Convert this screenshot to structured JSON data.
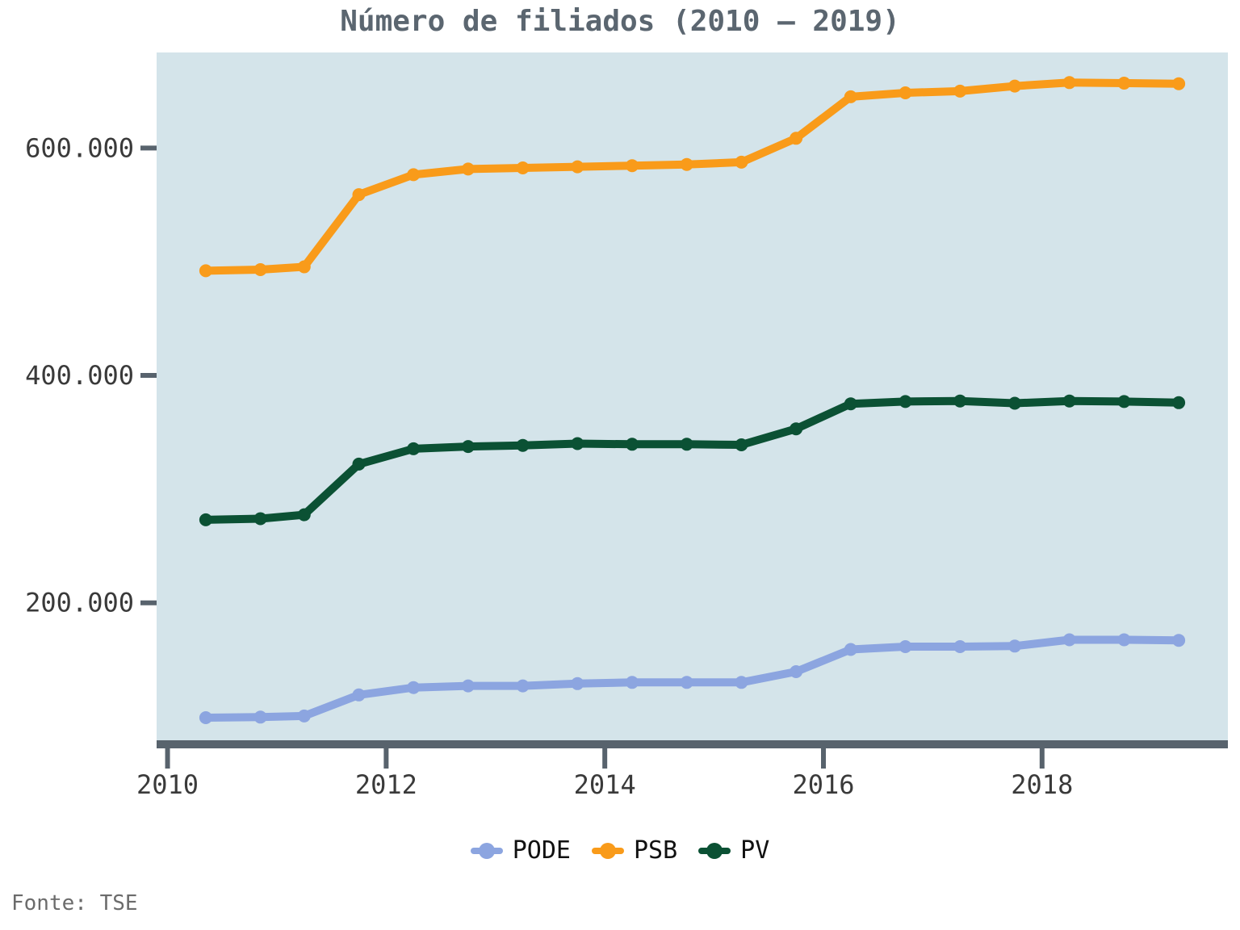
{
  "chart_data": {
    "type": "line",
    "title": "Número de filiados (2010 – 2019)",
    "xlabel": "",
    "ylabel": "",
    "x": [
      2010.35,
      2010.85,
      2011.25,
      2011.75,
      2012.25,
      2012.75,
      2013.25,
      2013.75,
      2014.25,
      2014.75,
      2015.25,
      2015.75,
      2016.25,
      2016.75,
      2017.25,
      2017.75,
      2018.25,
      2018.75,
      2019.25
    ],
    "xlim": [
      2009.9,
      2019.7
    ],
    "x_ticks": [
      2010,
      2012,
      2014,
      2016,
      2018
    ],
    "x_tick_labels": [
      "2010",
      "2012",
      "2014",
      "2016",
      "2018"
    ],
    "ylim": [
      77000,
      684000
    ],
    "y_ticks": [
      200000,
      400000,
      600000
    ],
    "y_tick_labels": [
      "200.000",
      "400.000",
      "600.000"
    ],
    "series": [
      {
        "name": "PODE",
        "color": "#8ca5e0",
        "values": [
          99000,
          99500,
          100500,
          119000,
          125500,
          127000,
          127000,
          129000,
          130000,
          130000,
          130000,
          139500,
          159000,
          161500,
          161500,
          162000,
          167500,
          167500,
          167000
        ]
      },
      {
        "name": "PSB",
        "color": "#f99b1a",
        "values": [
          492000,
          493000,
          495500,
          559000,
          576500,
          581500,
          582500,
          583500,
          584500,
          585500,
          587500,
          608500,
          645000,
          648500,
          650000,
          654500,
          657500,
          657000,
          656500
        ]
      },
      {
        "name": "PV",
        "color": "#0b5134",
        "values": [
          273000,
          274000,
          277500,
          322000,
          335500,
          337500,
          338500,
          340000,
          339500,
          339500,
          339000,
          353000,
          375000,
          377000,
          377500,
          375500,
          377500,
          377000,
          376000
        ]
      }
    ],
    "grid": false,
    "legend_position": "bottom",
    "plot_background": "#d4e4ea",
    "axis_color": "#58636d"
  },
  "source_note": "Fonte: TSE"
}
